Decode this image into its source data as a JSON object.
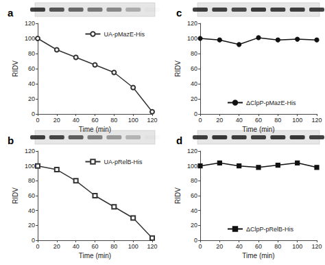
{
  "chart_data": [
    {
      "type": "line",
      "title": "a",
      "xlabel": "Time (min)",
      "ylabel": "RIDV",
      "x": [
        0,
        20,
        40,
        60,
        80,
        100,
        120
      ],
      "series": [
        {
          "name": "UA-pMazE-His",
          "color": "#333333",
          "marker": "open_circle",
          "values": [
            100,
            85,
            75,
            65,
            55,
            35,
            3
          ]
        }
      ],
      "xlim": [
        0,
        120
      ],
      "xticks": [
        0,
        20,
        40,
        60,
        80,
        100,
        120
      ],
      "ylim": [
        0,
        120
      ],
      "yticks": [
        0,
        20,
        40,
        60,
        80,
        100,
        120
      ],
      "grid": false,
      "legend": "upper right"
    },
    {
      "type": "line",
      "title": "b",
      "xlabel": "Time (min)",
      "ylabel": "RIDV",
      "x": [
        0,
        20,
        40,
        60,
        80,
        100,
        120
      ],
      "series": [
        {
          "name": "UA-pRelB-His",
          "color": "#333333",
          "marker": "open_square",
          "values": [
            100,
            95,
            80,
            60,
            45,
            30,
            3
          ]
        }
      ],
      "xlim": [
        0,
        120
      ],
      "xticks": [
        0,
        20,
        40,
        60,
        80,
        100,
        120
      ],
      "ylim": [
        0,
        120
      ],
      "yticks": [
        0,
        20,
        40,
        60,
        80,
        100,
        120
      ],
      "grid": false,
      "legend": "upper right"
    },
    {
      "type": "line",
      "title": "c",
      "xlabel": "Time (min)",
      "ylabel": "RIDV",
      "x": [
        0,
        20,
        40,
        60,
        80,
        100,
        120
      ],
      "series": [
        {
          "name": "ΔClpP-pMazE-His",
          "color": "#111111",
          "marker": "circle",
          "values": [
            100,
            98,
            92,
            101,
            98,
            99,
            98
          ]
        }
      ],
      "xlim": [
        0,
        120
      ],
      "xticks": [
        0,
        20,
        40,
        60,
        80,
        100,
        120
      ],
      "ylim": [
        0,
        120
      ],
      "yticks": [
        0,
        20,
        40,
        60,
        80,
        100,
        120
      ],
      "grid": false,
      "legend": "lower center"
    },
    {
      "type": "line",
      "title": "d",
      "xlabel": "Time (min)",
      "ylabel": "RIDV",
      "x": [
        0,
        20,
        40,
        60,
        80,
        100,
        120
      ],
      "series": [
        {
          "name": "ΔClpP-pRelB-His",
          "color": "#111111",
          "marker": "square",
          "values": [
            100,
            104,
            100,
            98,
            101,
            104,
            98
          ]
        }
      ],
      "xlim": [
        0,
        120
      ],
      "xticks": [
        0,
        20,
        40,
        60,
        80,
        100,
        120
      ],
      "ylim": [
        0,
        120
      ],
      "yticks": [
        0,
        20,
        40,
        60,
        80,
        100,
        120
      ],
      "grid": false,
      "legend": "lower center"
    }
  ]
}
